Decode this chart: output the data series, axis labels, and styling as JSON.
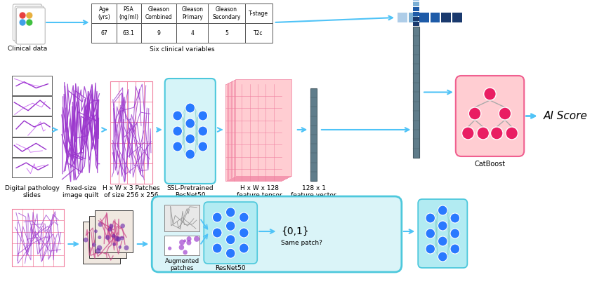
{
  "bg_color": "#ffffff",
  "arrow_color": "#4FC3F7",
  "table_headers": [
    "Age\n(yrs)",
    "PSA\n(ng/ml)",
    "Gleason\nCombined",
    "Gleason\nPrimary",
    "Gleason\nSecondary",
    "T-stage"
  ],
  "table_values": [
    "67",
    "63.1",
    "9",
    "4",
    "5",
    "T2c"
  ],
  "table_subtitle": "Six clinical variables",
  "clinical_data_label": "Clinical data",
  "pathology_label": "Digital pathology\nslides",
  "fixed_size_label": "Fixed-size\nimage quilt",
  "patches_label": "H x W x 3 Patches\nof size 256 x 256",
  "resnet_label": "SSL-Pretrained\nResNet50",
  "feature_tensor_label": "H x W x 128\nfeature tensor",
  "feature_vector_label": "128 x 1\nfeature vector",
  "catboost_label": "CatBoost",
  "ai_score_label": "AI Score",
  "bottom_augmented_label": "Augmented\npatches",
  "bottom_resnet_label": "ResNet50",
  "bottom_same_patch_label": "Same patch?",
  "bottom_binary_label": "{0,1}",
  "blue_dot": "#1a3a6e",
  "blue_med": "#1e5ba8",
  "blue_light_sq": "#7bafd4",
  "blue_lightest": "#aecde8"
}
